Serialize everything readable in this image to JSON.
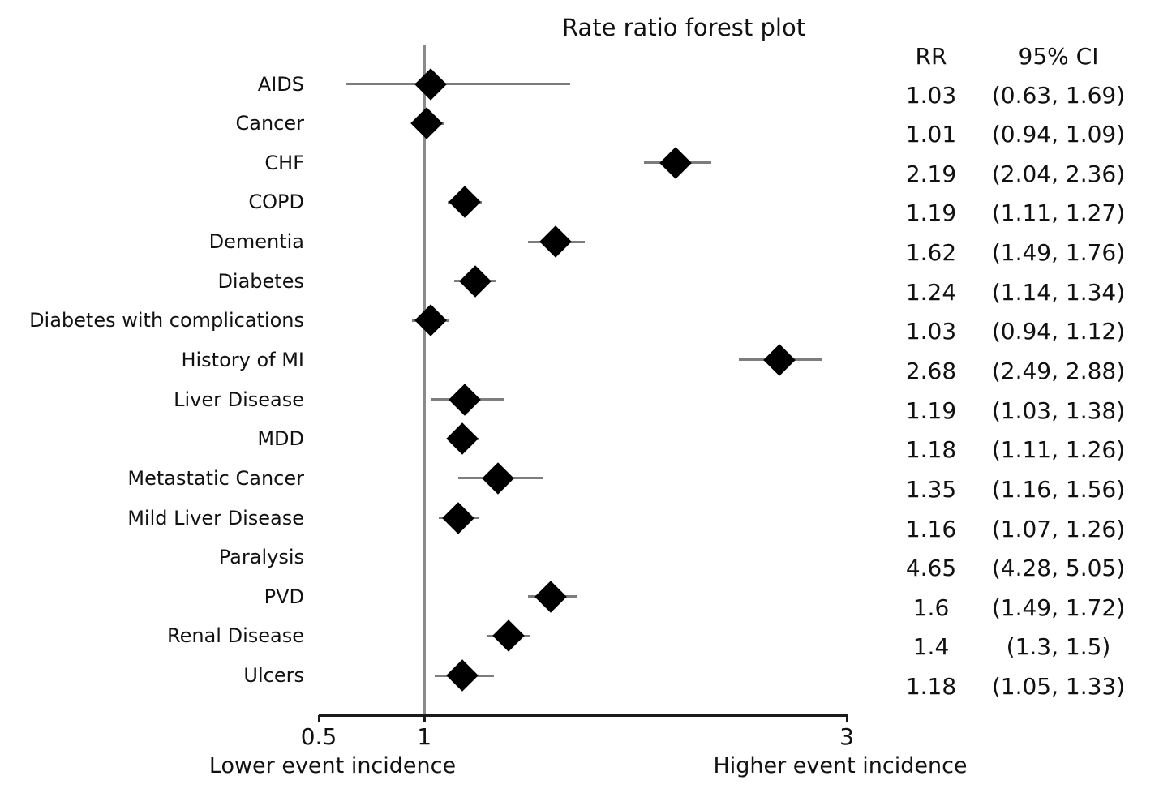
{
  "title": "Rate ratio forest plot",
  "table": {
    "rr_header": "RR",
    "ci_header": "95% CI"
  },
  "axis": {
    "tick_labels": [
      "0.5",
      "1",
      "3"
    ],
    "left_caption": "Lower event incidence",
    "right_caption": "Higher event incidence"
  },
  "colors": {
    "marker": "#000000",
    "whisker": "#7d7d7d",
    "reference_line": "#8a8a8a",
    "axis": "#1a1a1a",
    "text": "#111111",
    "background": "#ffffff"
  },
  "chart_data": {
    "type": "scatter",
    "subtype": "forest_plot",
    "title": "Rate ratio forest plot",
    "xlabel_left": "Lower event incidence",
    "xlabel_right": "Higher event incidence",
    "legend": null,
    "grid": false,
    "x_axis": {
      "scale": "linear",
      "min": 0.5,
      "max": 3,
      "ticks": [
        0.5,
        1,
        3
      ],
      "reference_line": 1
    },
    "columns": [
      "RR",
      "95% CI"
    ],
    "rows": [
      {
        "label": "AIDS",
        "rr": 1.03,
        "ci": [
          0.63,
          1.69
        ],
        "rr_text": "1.03",
        "ci_text": "(0.63, 1.69)"
      },
      {
        "label": "Cancer",
        "rr": 1.01,
        "ci": [
          0.94,
          1.09
        ],
        "rr_text": "1.01",
        "ci_text": "(0.94, 1.09)"
      },
      {
        "label": "CHF",
        "rr": 2.19,
        "ci": [
          2.04,
          2.36
        ],
        "rr_text": "2.19",
        "ci_text": "(2.04, 2.36)"
      },
      {
        "label": "COPD",
        "rr": 1.19,
        "ci": [
          1.11,
          1.27
        ],
        "rr_text": "1.19",
        "ci_text": "(1.11, 1.27)"
      },
      {
        "label": "Dementia",
        "rr": 1.62,
        "ci": [
          1.49,
          1.76
        ],
        "rr_text": "1.62",
        "ci_text": "(1.49, 1.76)"
      },
      {
        "label": "Diabetes",
        "rr": 1.24,
        "ci": [
          1.14,
          1.34
        ],
        "rr_text": "1.24",
        "ci_text": "(1.14, 1.34)"
      },
      {
        "label": "Diabetes with complications",
        "rr": 1.03,
        "ci": [
          0.94,
          1.12
        ],
        "rr_text": "1.03",
        "ci_text": "(0.94, 1.12)"
      },
      {
        "label": "History of MI",
        "rr": 2.68,
        "ci": [
          2.49,
          2.88
        ],
        "rr_text": "2.68",
        "ci_text": "(2.49, 2.88)"
      },
      {
        "label": "Liver Disease",
        "rr": 1.19,
        "ci": [
          1.03,
          1.38
        ],
        "rr_text": "1.19",
        "ci_text": "(1.03, 1.38)"
      },
      {
        "label": "MDD",
        "rr": 1.18,
        "ci": [
          1.11,
          1.26
        ],
        "rr_text": "1.18",
        "ci_text": "(1.11, 1.26)"
      },
      {
        "label": "Metastatic Cancer",
        "rr": 1.35,
        "ci": [
          1.16,
          1.56
        ],
        "rr_text": "1.35",
        "ci_text": "(1.16, 1.56)"
      },
      {
        "label": "Mild Liver Disease",
        "rr": 1.16,
        "ci": [
          1.07,
          1.26
        ],
        "rr_text": "1.16",
        "ci_text": "(1.07, 1.26)"
      },
      {
        "label": "Paralysis",
        "rr": 4.65,
        "ci": [
          4.28,
          5.05
        ],
        "rr_text": "4.65",
        "ci_text": "(4.28, 5.05)",
        "off_scale": true
      },
      {
        "label": "PVD",
        "rr": 1.6,
        "ci": [
          1.49,
          1.72
        ],
        "rr_text": "1.6",
        "ci_text": "(1.49, 1.72)"
      },
      {
        "label": "Renal Disease",
        "rr": 1.4,
        "ci": [
          1.3,
          1.5
        ],
        "rr_text": "1.4",
        "ci_text": "(1.3, 1.5)"
      },
      {
        "label": "Ulcers",
        "rr": 1.18,
        "ci": [
          1.05,
          1.33
        ],
        "rr_text": "1.18",
        "ci_text": "(1.05, 1.33)"
      }
    ]
  }
}
